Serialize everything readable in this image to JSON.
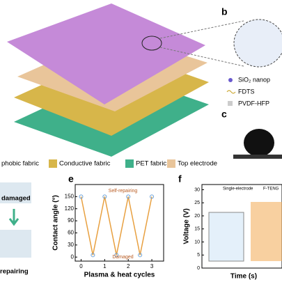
{
  "panels": {
    "b": "b",
    "c": "c",
    "e": "e",
    "f": "f"
  },
  "legend_b": [
    "SiO₂ nanop",
    "FDTS",
    "PVDF-HFP"
  ],
  "legend_a": [
    "phobic fabric",
    "Conductive fabric",
    "PET fabric",
    "Top electrode"
  ],
  "panel_d": {
    "top": "damaged",
    "bottom": "repairing"
  },
  "panel_f": {
    "y_label": "Voltage (V)",
    "x_label": "Time (s)",
    "yticks": [
      0,
      5,
      10,
      15,
      20,
      25,
      30
    ],
    "legend": [
      "Single-electrode",
      "F-TENG"
    ]
  },
  "chart_data": {
    "type": "line",
    "x_label": "Plasma & heat cycles",
    "y_label": "Contact angle (°)",
    "x": [
      0,
      0.5,
      1,
      1.5,
      2,
      2.5,
      3
    ],
    "values": [
      150,
      5,
      150,
      5,
      150,
      5,
      150
    ],
    "color": "#e8a040",
    "xlim": [
      -0.25,
      3.5
    ],
    "ylim": [
      -10,
      180
    ],
    "xticks": [
      0,
      1,
      2,
      3
    ],
    "yticks": [
      0,
      30,
      60,
      90,
      120,
      150
    ],
    "annotations": [
      "Self-repairing",
      "Damaged"
    ]
  }
}
